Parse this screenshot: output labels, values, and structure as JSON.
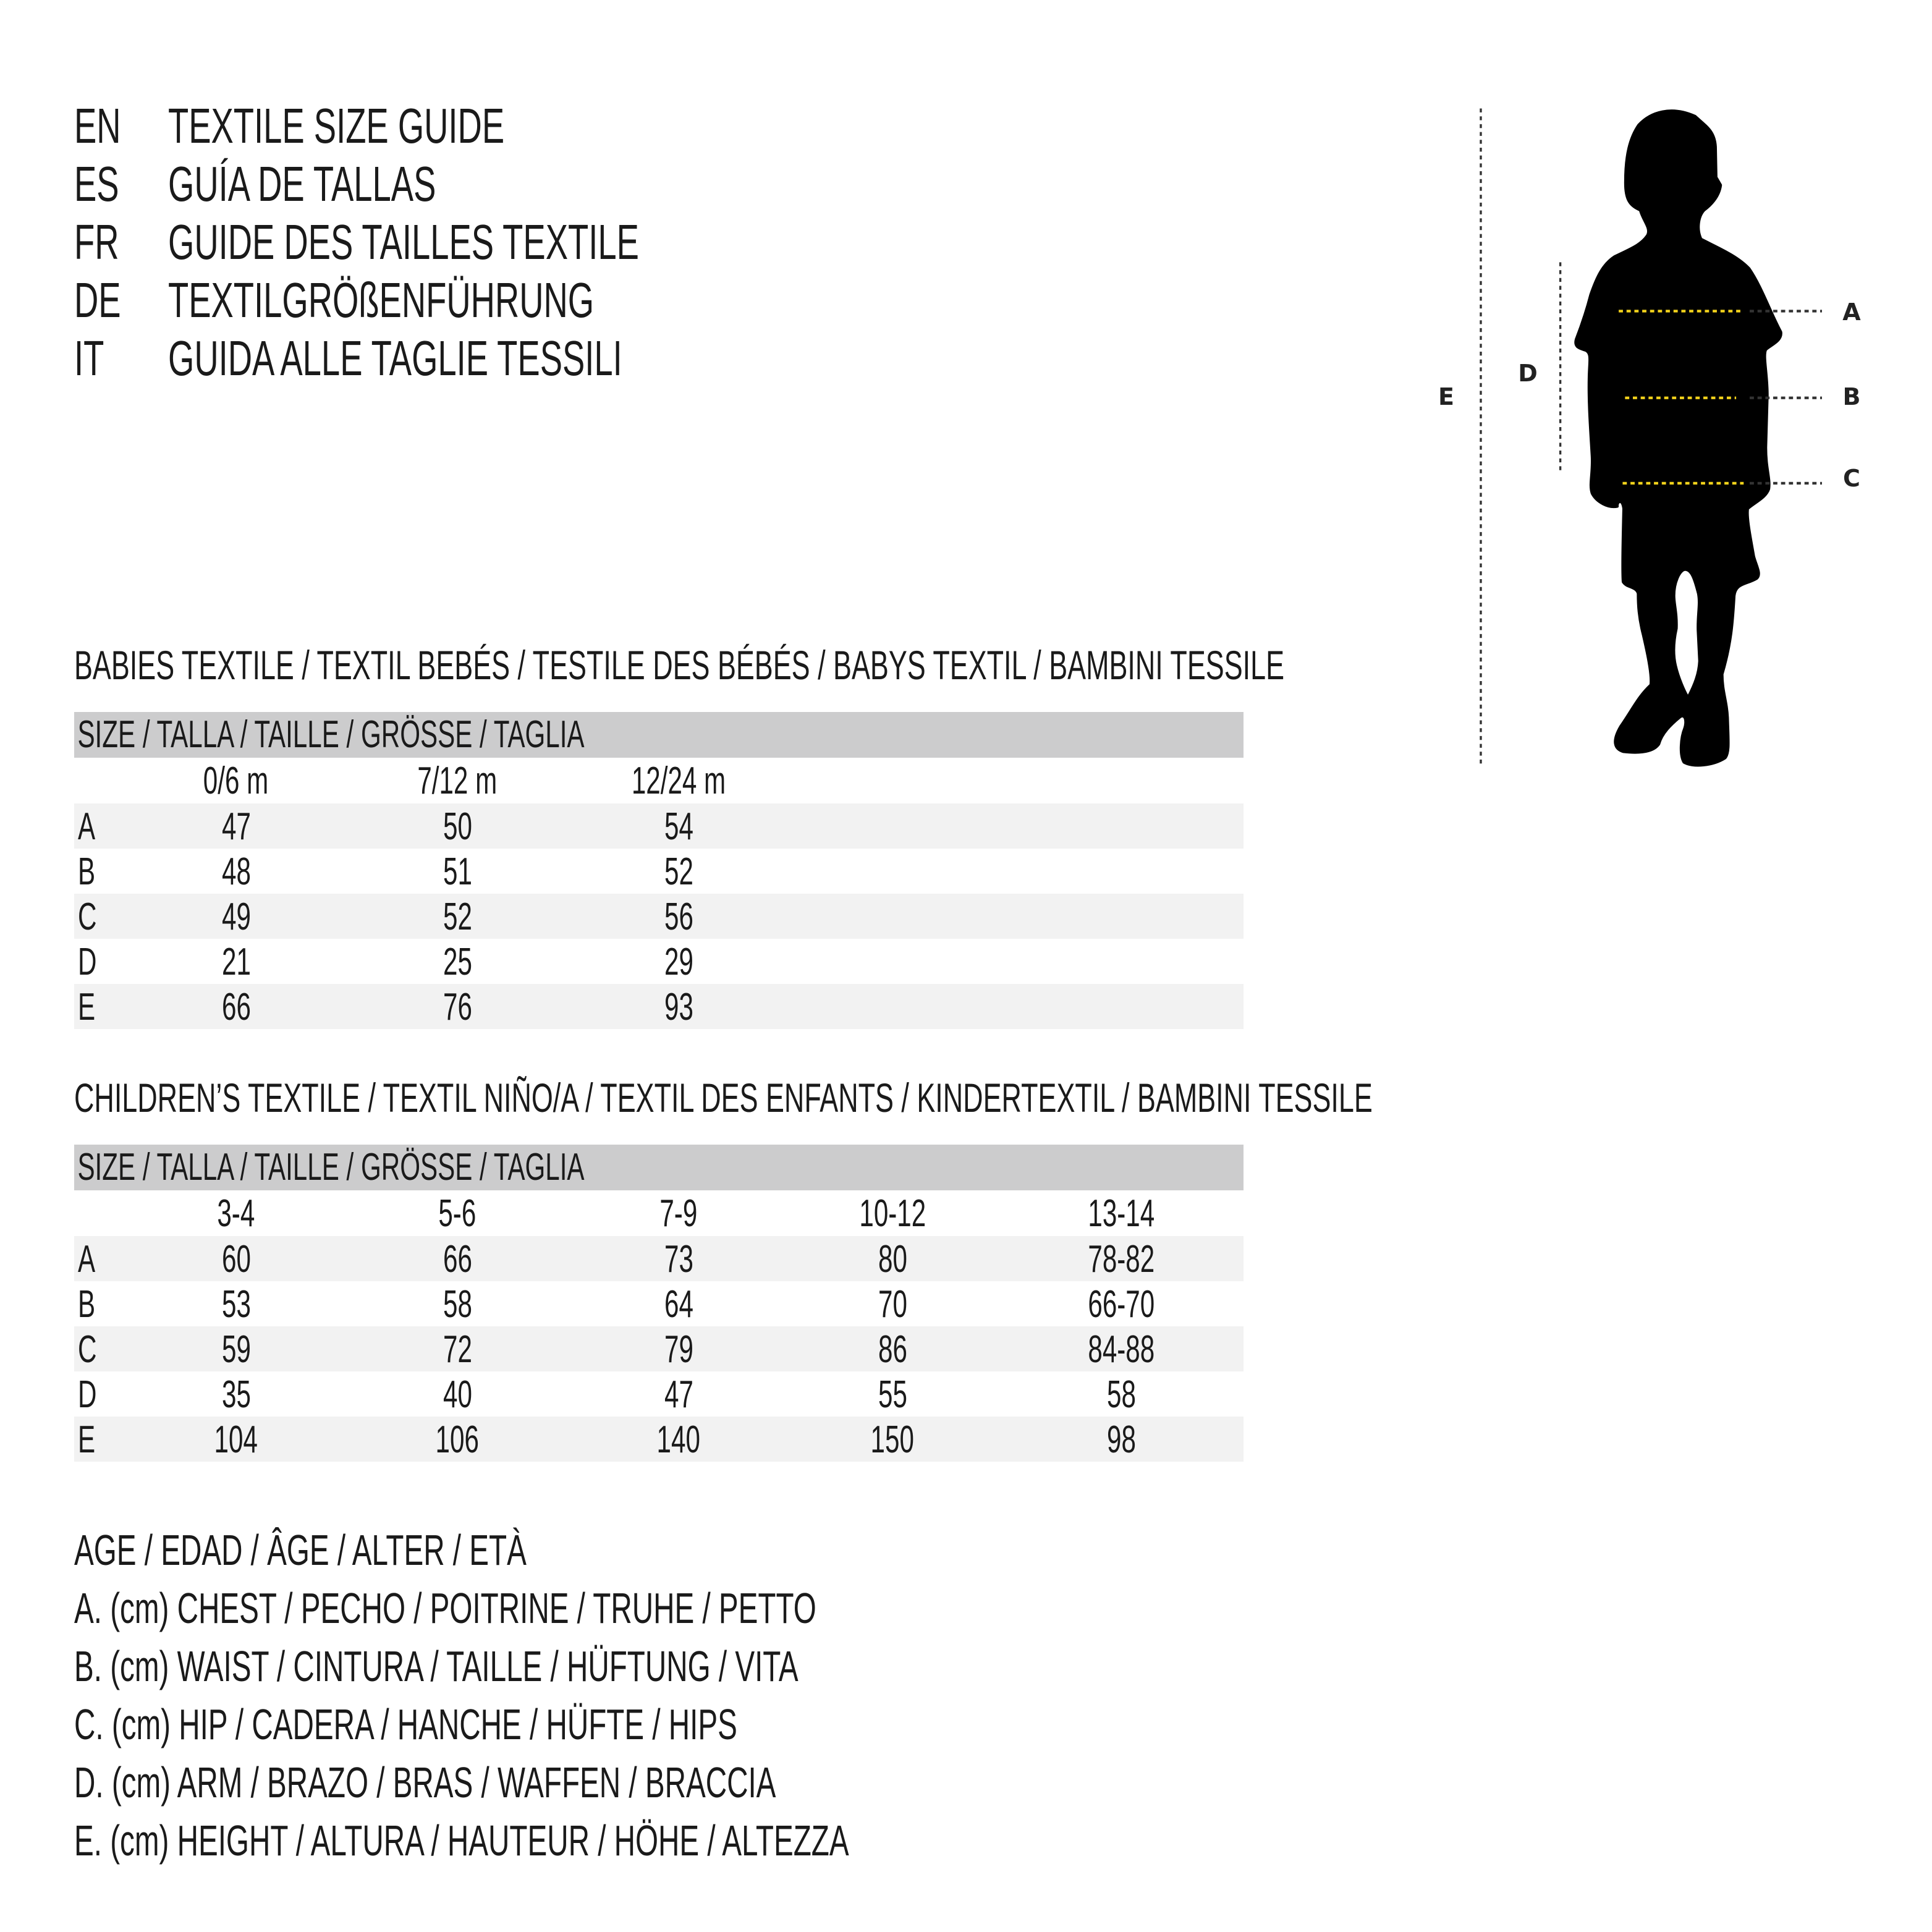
{
  "titles": [
    {
      "code": "EN",
      "text": "TEXTILE SIZE GUIDE"
    },
    {
      "code": "ES",
      "text": "GUÍA DE TALLAS"
    },
    {
      "code": "FR",
      "text": "GUIDE DES TAILLES TEXTILE"
    },
    {
      "code": "DE",
      "text": "TEXTILGRÖßENFÜHRUNG"
    },
    {
      "code": "IT",
      "text": "GUIDA ALLE TAGLIE TESSILI"
    }
  ],
  "figure": {
    "labels": {
      "A": "A",
      "B": "B",
      "C": "C",
      "D": "D",
      "E": "E"
    },
    "colors": {
      "measure_line": "#f2d21b",
      "dots": "#333333",
      "silhouette": "#000000"
    }
  },
  "babies": {
    "heading": "BABIES TEXTILE / TEXTIL BEBÉS / TESTILE DES BÉBÉS / BABYS TEXTIL / BAMBINI TESSILE",
    "size_header": "SIZE / TALLA / TAILLE / GRÖSSE / TAGLIA",
    "columns": [
      "0/6 m",
      "7/12 m",
      "12/24 m"
    ],
    "rows": [
      {
        "label": "A",
        "values": [
          "47",
          "50",
          "54"
        ]
      },
      {
        "label": "B",
        "values": [
          "48",
          "51",
          "52"
        ]
      },
      {
        "label": "C",
        "values": [
          "49",
          "52",
          "56"
        ]
      },
      {
        "label": "D",
        "values": [
          "21",
          "25",
          "29"
        ]
      },
      {
        "label": "E",
        "values": [
          "66",
          "76",
          "93"
        ]
      }
    ]
  },
  "children": {
    "heading": "CHILDREN’S TEXTILE / TEXTIL NIÑO/A / TEXTIL DES ENFANTS / KINDERTEXTIL / BAMBINI TESSILE",
    "size_header": "SIZE / TALLA / TAILLE / GRÖSSE / TAGLIA",
    "columns": [
      "3-4",
      "5-6",
      "7-9",
      "10-12",
      "13-14"
    ],
    "rows": [
      {
        "label": "A",
        "values": [
          "60",
          "66",
          "73",
          "80",
          "78-82"
        ]
      },
      {
        "label": "B",
        "values": [
          "53",
          "58",
          "64",
          "70",
          "66-70"
        ]
      },
      {
        "label": "C",
        "values": [
          "59",
          "72",
          "79",
          "86",
          "84-88"
        ]
      },
      {
        "label": "D",
        "values": [
          "35",
          "40",
          "47",
          "55",
          "58"
        ]
      },
      {
        "label": "E",
        "values": [
          "104",
          "106",
          "140",
          "150",
          "98"
        ]
      }
    ]
  },
  "legend": [
    "AGE / EDAD / ÂGE / ALTER / ETÀ",
    "A. (cm) CHEST / PECHO / POITRINE / TRUHE / PETTO",
    "B. (cm) WAIST / CINTURA / TAILLE / HÜFTUNG / VITA",
    "C. (cm) HIP / CADERA / HANCHE / HÜFTE / HIPS",
    "D. (cm) ARM / BRAZO / BRAS / WAFFEN / BRACCIA",
    "E. (cm) HEIGHT / ALTURA / HAUTEUR / HÖHE / ALTEZZA"
  ]
}
